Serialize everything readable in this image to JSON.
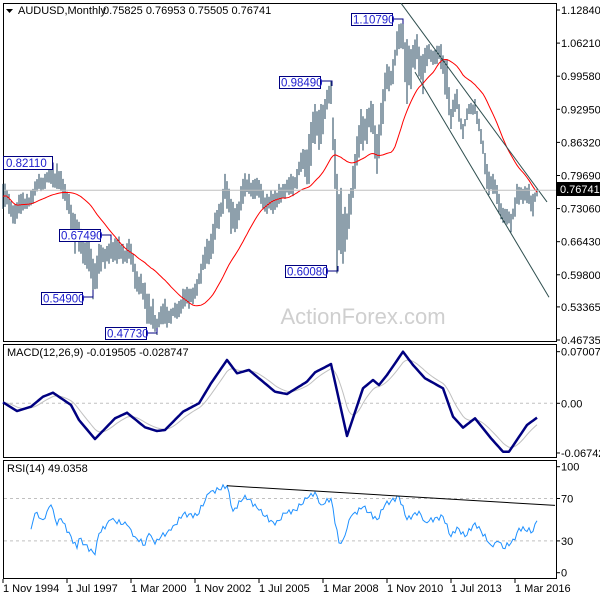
{
  "header": {
    "symbol_timeframe": "AUDUSD,Monthly",
    "ohlc": "0.75825 0.76953 0.75505 0.76741",
    "collapse_icon": "triangle-down-icon"
  },
  "watermark": "ActionForex.com",
  "colors": {
    "bars": "#1d4159",
    "moving_average": "#ff0000",
    "channel": "#2f4f4f",
    "macd": "#000080",
    "signal": "#c0c0c0",
    "rsi": "#1e90ff",
    "rsi_trendline": "#000000",
    "annotation": "#000080",
    "current_price_box": "#000000"
  },
  "x_axis": {
    "labels": [
      "1 Nov 1994",
      "1 Jul 1997",
      "1 Mar 2000",
      "1 Nov 2002",
      "1 Jul 2005",
      "1 Mar 2008",
      "1 Nov 2010",
      "1 Jul 2013",
      "1 Mar 2016"
    ],
    "dates": [
      "1994-11",
      "1997-07",
      "2000-03",
      "2002-11",
      "2005-07",
      "2008-03",
      "2010-11",
      "2013-07",
      "2016-03"
    ]
  },
  "chart_data": [
    {
      "type": "bar",
      "panel": "price",
      "title": "AUDUSD,Monthly",
      "current_price": 0.76741,
      "current_price_label": "0.76741",
      "ylim": [
        0.46735,
        1.1284
      ],
      "y_ticks": [
        "1.12840",
        "1.06210",
        "0.99580",
        "0.92950",
        "0.86320",
        "0.79690",
        "0.73060",
        "0.66430",
        "0.59800",
        "0.53365",
        "0.46735"
      ],
      "bars_high_low": [
        [
          "1994-11",
          0.78,
          0.73
        ],
        [
          "1995-02",
          0.76,
          0.72
        ],
        [
          "1995-05",
          0.74,
          0.7
        ],
        [
          "1995-08",
          0.76,
          0.72
        ],
        [
          "1995-11",
          0.76,
          0.73
        ],
        [
          "1996-02",
          0.77,
          0.74
        ],
        [
          "1996-05",
          0.8,
          0.77
        ],
        [
          "1996-08",
          0.8,
          0.77
        ],
        [
          "1996-11",
          0.81,
          0.78
        ],
        [
          "1997-02",
          0.8211,
          0.77
        ],
        [
          "1997-05",
          0.79,
          0.75
        ],
        [
          "1997-08",
          0.76,
          0.72
        ],
        [
          "1997-11",
          0.72,
          0.64
        ],
        [
          "1998-02",
          0.69,
          0.64
        ],
        [
          "1998-05",
          0.67,
          0.61
        ],
        [
          "1998-08",
          0.63,
          0.549
        ],
        [
          "1998-11",
          0.66,
          0.6
        ],
        [
          "1999-02",
          0.65,
          0.61
        ],
        [
          "1999-05",
          0.6749,
          0.63
        ],
        [
          "1999-08",
          0.67,
          0.62
        ],
        [
          "1999-11",
          0.66,
          0.62
        ],
        [
          "2000-02",
          0.67,
          0.63
        ],
        [
          "2000-05",
          0.62,
          0.57
        ],
        [
          "2000-08",
          0.6,
          0.56
        ],
        [
          "2000-11",
          0.56,
          0.5
        ],
        [
          "2001-02",
          0.55,
          0.49
        ],
        [
          "2001-04",
          0.51,
          0.4773
        ],
        [
          "2001-08",
          0.55,
          0.5
        ],
        [
          "2001-11",
          0.53,
          0.5
        ],
        [
          "2002-02",
          0.54,
          0.51
        ],
        [
          "2002-05",
          0.57,
          0.53
        ],
        [
          "2002-08",
          0.57,
          0.53
        ],
        [
          "2002-11",
          0.58,
          0.55
        ],
        [
          "2003-02",
          0.62,
          0.58
        ],
        [
          "2003-05",
          0.67,
          0.62
        ],
        [
          "2003-08",
          0.7,
          0.64
        ],
        [
          "2003-11",
          0.74,
          0.69
        ],
        [
          "2004-02",
          0.8,
          0.75
        ],
        [
          "2004-05",
          0.75,
          0.68
        ],
        [
          "2004-08",
          0.74,
          0.69
        ],
        [
          "2004-11",
          0.79,
          0.74
        ],
        [
          "2005-02",
          0.8,
          0.76
        ],
        [
          "2005-05",
          0.79,
          0.75
        ],
        [
          "2005-08",
          0.78,
          0.74
        ],
        [
          "2005-11",
          0.76,
          0.72
        ],
        [
          "2006-02",
          0.76,
          0.72
        ],
        [
          "2006-05",
          0.78,
          0.74
        ],
        [
          "2006-08",
          0.78,
          0.75
        ],
        [
          "2006-11",
          0.8,
          0.76
        ],
        [
          "2007-02",
          0.81,
          0.77
        ],
        [
          "2007-05",
          0.85,
          0.81
        ],
        [
          "2007-08",
          0.88,
          0.78
        ],
        [
          "2007-11",
          0.94,
          0.86
        ],
        [
          "2008-02",
          0.94,
          0.86
        ],
        [
          "2008-04",
          0.95,
          0.91
        ],
        [
          "2008-07",
          0.9849,
          0.94
        ],
        [
          "2008-09",
          0.87,
          0.77
        ],
        [
          "2008-10",
          0.8,
          0.6008
        ],
        [
          "2009-01",
          0.72,
          0.62
        ],
        [
          "2009-04",
          0.76,
          0.69
        ],
        [
          "2009-07",
          0.84,
          0.77
        ],
        [
          "2009-10",
          0.93,
          0.86
        ],
        [
          "2010-01",
          0.93,
          0.86
        ],
        [
          "2010-04",
          0.94,
          0.88
        ],
        [
          "2010-06",
          0.88,
          0.8
        ],
        [
          "2010-09",
          0.97,
          0.9
        ],
        [
          "2010-11",
          1.02,
          0.97
        ],
        [
          "2011-02",
          1.03,
          0.98
        ],
        [
          "2011-05",
          1.1,
          1.05
        ],
        [
          "2011-07",
          1.1079,
          1.05
        ],
        [
          "2011-09",
          1.07,
          0.94
        ],
        [
          "2011-11",
          1.05,
          0.97
        ],
        [
          "2012-02",
          1.08,
          1.03
        ],
        [
          "2012-05",
          1.04,
          0.96
        ],
        [
          "2012-08",
          1.06,
          1.03
        ],
        [
          "2012-11",
          1.05,
          1.02
        ],
        [
          "2013-02",
          1.06,
          1.01
        ],
        [
          "2013-05",
          1.03,
          0.95
        ],
        [
          "2013-07",
          0.93,
          0.89
        ],
        [
          "2013-10",
          0.97,
          0.93
        ],
        [
          "2014-01",
          0.9,
          0.87
        ],
        [
          "2014-04",
          0.94,
          0.92
        ],
        [
          "2014-07",
          0.95,
          0.92
        ],
        [
          "2014-10",
          0.89,
          0.86
        ],
        [
          "2015-01",
          0.82,
          0.77
        ],
        [
          "2015-04",
          0.8,
          0.76
        ],
        [
          "2015-07",
          0.76,
          0.72
        ],
        [
          "2015-10",
          0.73,
          0.7
        ],
        [
          "2016-01",
          0.72,
          0.683
        ],
        [
          "2016-04",
          0.78,
          0.74
        ],
        [
          "2016-07",
          0.77,
          0.74
        ],
        [
          "2016-10",
          0.78,
          0.74
        ],
        [
          "2016-12",
          0.76,
          0.715
        ],
        [
          "2017-02",
          0.7695,
          0.755
        ]
      ],
      "moving_average": "red line",
      "channel": {
        "upper": [
          [
            "2011-06",
            1.142
          ],
          [
            "2017-07",
            0.744
          ]
        ],
        "lower": [
          [
            "2012-01",
            1.004
          ],
          [
            "2017-08",
            0.553
          ]
        ]
      },
      "annotations": [
        {
          "label": "0.82110",
          "date": "1997-02",
          "price": 0.8211
        },
        {
          "label": "0.67490",
          "date": "1999-05",
          "price": 0.6749
        },
        {
          "label": "0.54900",
          "date": "1998-08",
          "price": 0.549
        },
        {
          "label": "0.47730",
          "date": "2001-04",
          "price": 0.4773
        },
        {
          "label": "0.98490",
          "date": "2008-07",
          "price": 0.9849
        },
        {
          "label": "0.60080",
          "date": "2008-10",
          "price": 0.6008
        },
        {
          "label": "1.10790",
          "date": "2011-07",
          "price": 1.1079
        }
      ]
    },
    {
      "type": "line",
      "panel": "macd",
      "title": "MACD(12,26,9) -0.019505 -0.028747",
      "ylim": [
        -0.067423,
        0.070071
      ],
      "y_ticks": [
        "0.070071",
        "0.00",
        "-0.067423"
      ],
      "zero_line": true,
      "series": [
        {
          "name": "MACD",
          "points": [
            [
              "1994-11",
              0.0013
            ],
            [
              "1995-06",
              -0.0105
            ],
            [
              "1996-01",
              -0.0046
            ],
            [
              "1996-07",
              0.009
            ],
            [
              "1996-12",
              0.0144
            ],
            [
              "1997-09",
              -0.0023
            ],
            [
              "1998-01",
              -0.0227
            ],
            [
              "1998-09",
              -0.0485
            ],
            [
              "1999-07",
              -0.0204
            ],
            [
              "2000-01",
              -0.0128
            ],
            [
              "2000-10",
              -0.0326
            ],
            [
              "2001-04",
              -0.0376
            ],
            [
              "2001-08",
              -0.0362
            ],
            [
              "2002-05",
              -0.0114
            ],
            [
              "2003-01",
              0.0
            ],
            [
              "2003-07",
              0.0271
            ],
            [
              "2004-03",
              0.0588
            ],
            [
              "2004-08",
              0.0407
            ],
            [
              "2005-02",
              0.0452
            ],
            [
              "2006-03",
              0.0157
            ],
            [
              "2006-09",
              0.0126
            ],
            [
              "2007-07",
              0.0294
            ],
            [
              "2007-11",
              0.042
            ],
            [
              "2008-07",
              0.0533
            ],
            [
              "2009-03",
              -0.0444
            ],
            [
              "2009-11",
              0.0204
            ],
            [
              "2010-04",
              0.0316
            ],
            [
              "2010-07",
              0.0248
            ],
            [
              "2010-11",
              0.0384
            ],
            [
              "2011-07",
              0.07
            ],
            [
              "2011-12",
              0.052
            ],
            [
              "2012-06",
              0.0339
            ],
            [
              "2013-03",
              0.0204
            ],
            [
              "2013-08",
              -0.0181
            ],
            [
              "2014-01",
              -0.033
            ],
            [
              "2014-07",
              -0.0204
            ],
            [
              "2015-03",
              -0.0475
            ],
            [
              "2015-09",
              -0.0657
            ],
            [
              "2015-12",
              -0.0657
            ],
            [
              "2016-09",
              -0.0294
            ],
            [
              "2017-02",
              -0.0195
            ]
          ]
        },
        {
          "name": "Signal",
          "last": -0.028747
        }
      ]
    },
    {
      "type": "line",
      "panel": "rsi",
      "title": "RSI(14) 49.0358",
      "ylim": [
        0,
        100
      ],
      "y_ticks": [
        "100",
        "70",
        "30",
        "0"
      ],
      "levels": [
        70,
        30
      ],
      "trendline": [
        [
          "2004-03",
          82
        ],
        [
          "2017-11",
          63.5
        ]
      ],
      "series": [
        {
          "name": "RSI(14)",
          "points": [
            [
              "1996-01",
              41
            ],
            [
              "1996-03",
              56
            ],
            [
              "1996-07",
              50
            ],
            [
              "1996-11",
              64
            ],
            [
              "1997-02",
              45
            ],
            [
              "1997-04",
              51
            ],
            [
              "1997-12",
              23
            ],
            [
              "1998-01",
              32
            ],
            [
              "1998-09",
              17
            ],
            [
              "1998-11",
              37
            ],
            [
              "1999-05",
              50
            ],
            [
              "2000-01",
              45
            ],
            [
              "2000-05",
              34
            ],
            [
              "2000-10",
              26
            ],
            [
              "2000-12",
              37
            ],
            [
              "2001-03",
              27
            ],
            [
              "2001-06",
              34
            ],
            [
              "2001-11",
              40
            ],
            [
              "2002-05",
              55
            ],
            [
              "2002-12",
              54
            ],
            [
              "2003-06",
              75
            ],
            [
              "2004-03",
              82
            ],
            [
              "2004-06",
              58
            ],
            [
              "2004-12",
              73
            ],
            [
              "2005-07",
              59
            ],
            [
              "2006-03",
              45
            ],
            [
              "2006-08",
              56
            ],
            [
              "2007-01",
              59
            ],
            [
              "2007-07",
              70
            ],
            [
              "2007-11",
              76
            ],
            [
              "2008-02",
              64
            ],
            [
              "2008-07",
              70
            ],
            [
              "2008-11",
              28
            ],
            [
              "2009-01",
              31
            ],
            [
              "2009-05",
              53
            ],
            [
              "2009-11",
              62
            ],
            [
              "2010-06",
              50
            ],
            [
              "2010-10",
              64
            ],
            [
              "2011-05",
              72
            ],
            [
              "2011-09",
              50
            ],
            [
              "2012-03",
              58
            ],
            [
              "2012-06",
              48
            ],
            [
              "2013-03",
              53
            ],
            [
              "2013-07",
              34
            ],
            [
              "2013-10",
              43
            ],
            [
              "2014-02",
              34
            ],
            [
              "2014-07",
              47
            ],
            [
              "2015-03",
              26
            ],
            [
              "2015-07",
              29
            ],
            [
              "2015-09",
              23
            ],
            [
              "2016-03",
              31
            ],
            [
              "2016-05",
              42
            ],
            [
              "2016-12",
              39
            ],
            [
              "2017-02",
              49.04
            ]
          ]
        }
      ]
    }
  ]
}
